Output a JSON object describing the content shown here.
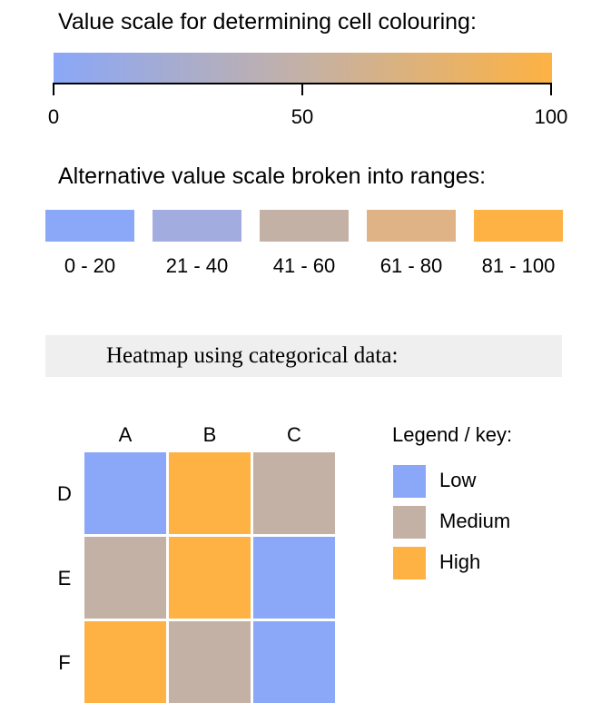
{
  "scale_section": {
    "title": "Value scale for determining cell colouring:",
    "color_low": "#8aa7f8",
    "color_mid": "#c4b1a6",
    "color_high": "#fdb243",
    "ticks": [
      {
        "value": 0,
        "label": "0"
      },
      {
        "value": 50,
        "label": "50"
      },
      {
        "value": 100,
        "label": "100"
      }
    ],
    "min": 0,
    "max": 100
  },
  "ranges_section": {
    "title": "Alternative value scale broken into ranges:",
    "ranges": [
      {
        "label": "0 - 20",
        "color": "#8aa7f8"
      },
      {
        "label": "21 - 40",
        "color": "#a3acdf"
      },
      {
        "label": "41 - 60",
        "color": "#c4b1a6"
      },
      {
        "label": "61 - 80",
        "color": "#dfb386"
      },
      {
        "label": "81 - 100",
        "color": "#fdb243"
      }
    ]
  },
  "heatmap_section": {
    "title": "Heatmap using categorical data:",
    "legend_title": "Legend / key:"
  },
  "chart_data": {
    "type": "heatmap",
    "columns": [
      "A",
      "B",
      "C"
    ],
    "rows": [
      "D",
      "E",
      "F"
    ],
    "values": [
      [
        "Low",
        "High",
        "Medium"
      ],
      [
        "Medium",
        "High",
        "Low"
      ],
      [
        "High",
        "Medium",
        "Low"
      ]
    ],
    "categories": [
      {
        "name": "Low",
        "color": "#8aa7f8"
      },
      {
        "name": "Medium",
        "color": "#c4b1a6"
      },
      {
        "name": "High",
        "color": "#fdb243"
      }
    ]
  }
}
